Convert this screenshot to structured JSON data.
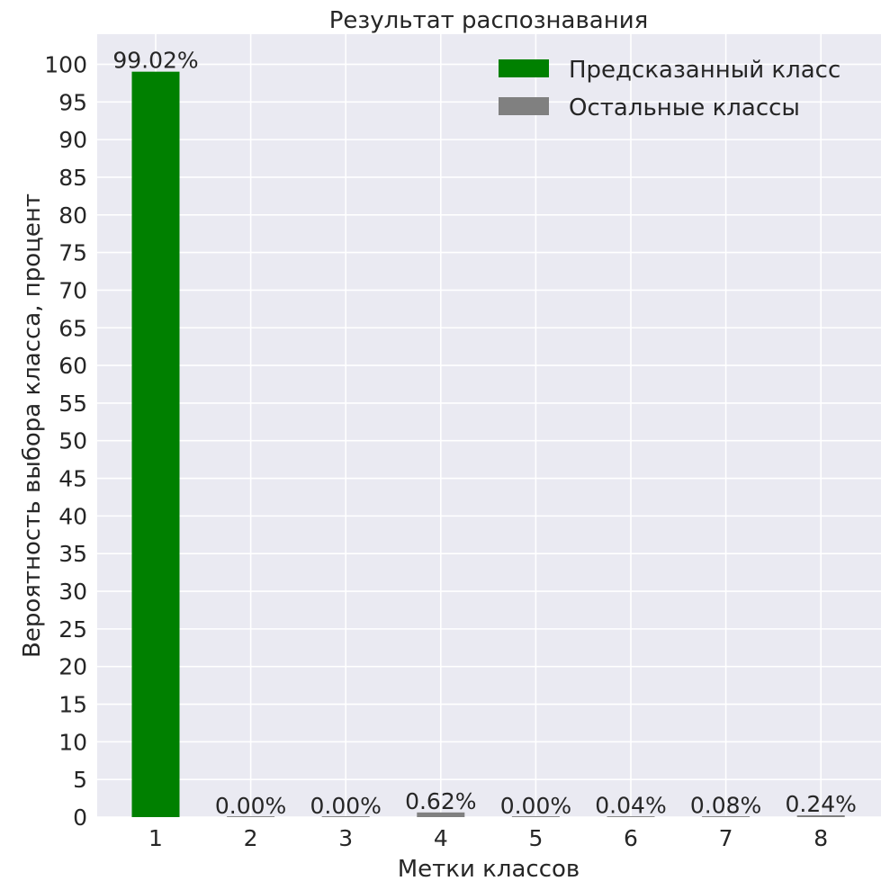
{
  "chart_data": {
    "type": "bar",
    "title": "Результат распознавания",
    "xlabel": "Метки классов",
    "ylabel": "Вероятность выбора класса, процент",
    "categories": [
      "1",
      "2",
      "3",
      "4",
      "5",
      "6",
      "7",
      "8"
    ],
    "values": [
      99.02,
      0.0,
      0.0,
      0.62,
      0.0,
      0.04,
      0.08,
      0.24
    ],
    "value_labels": [
      "99.02%",
      "0.00%",
      "0.00%",
      "0.62%",
      "0.00%",
      "0.04%",
      "0.08%",
      "0.24%"
    ],
    "predicted_index": 0,
    "ylim": [
      0,
      104
    ],
    "yticks": [
      0,
      5,
      10,
      15,
      20,
      25,
      30,
      35,
      40,
      45,
      50,
      55,
      60,
      65,
      70,
      75,
      80,
      85,
      90,
      95,
      100
    ],
    "grid": true,
    "legend_position": "top-right",
    "legend": [
      {
        "label": "Предсказанный класс",
        "color": "#008000"
      },
      {
        "label": "Остальные классы",
        "color": "#808080"
      }
    ],
    "colors": {
      "predicted": "#008000",
      "others": "#808080"
    }
  }
}
